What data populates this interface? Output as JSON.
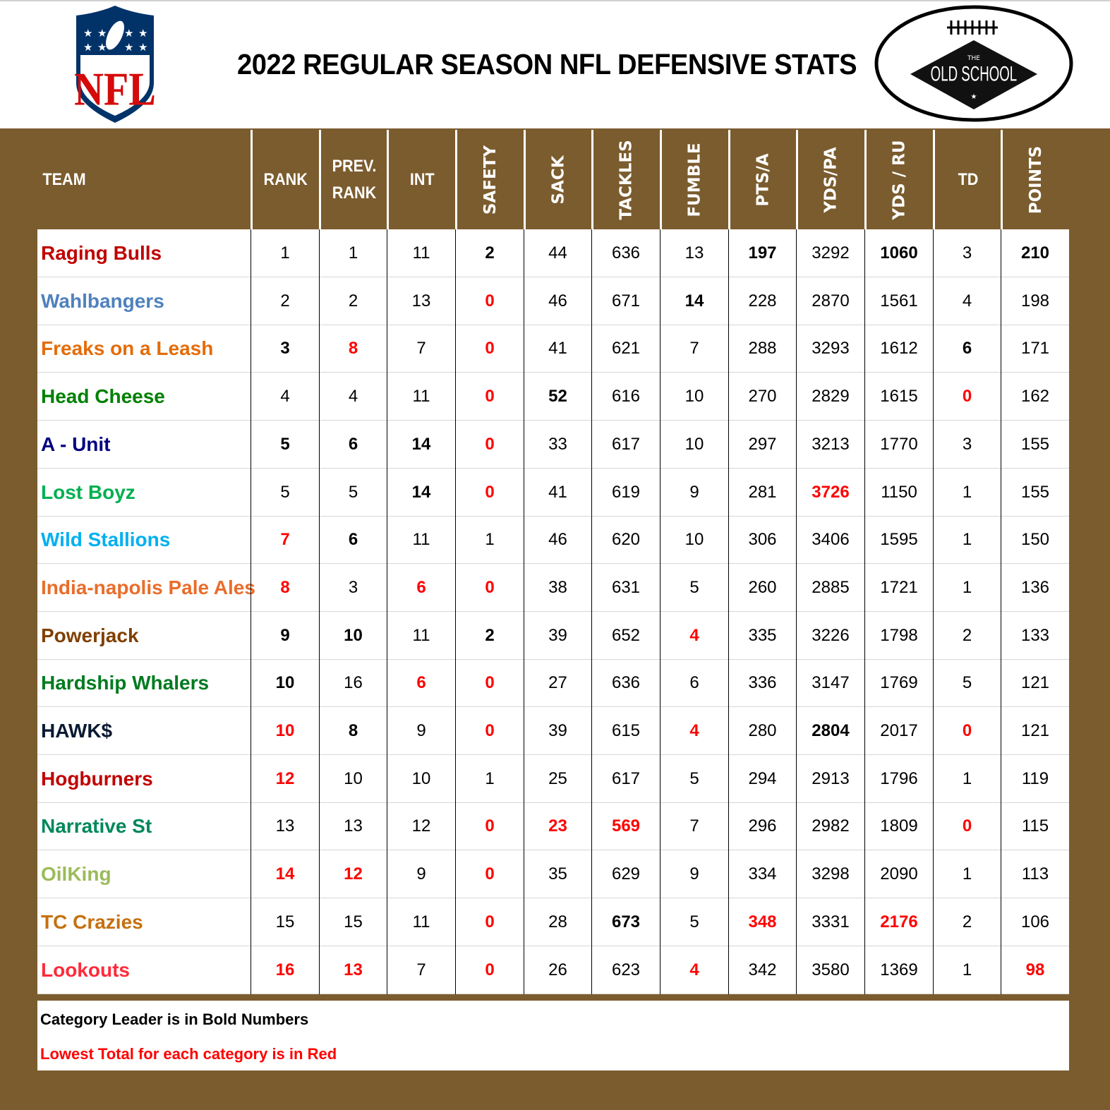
{
  "header": {
    "title": "2022 REGULAR SEASON NFL DEFENSIVE STATS",
    "left_logo": "nfl-shield-logo",
    "left_logo_text": "NFL",
    "right_logo": "old-school-football-logo",
    "right_logo_text_top": "THE",
    "right_logo_text_main": "OLD SCHOOL"
  },
  "columns": [
    {
      "key": "team",
      "label": "TEAM"
    },
    {
      "key": "rank",
      "label": "RANK"
    },
    {
      "key": "prev_rank",
      "label": "PREV. RANK"
    },
    {
      "key": "int",
      "label": "INT"
    },
    {
      "key": "safety",
      "label": "SAFETY"
    },
    {
      "key": "sack",
      "label": "SACK"
    },
    {
      "key": "tackles",
      "label": "TACKLES"
    },
    {
      "key": "fumble",
      "label": "FUMBLE"
    },
    {
      "key": "pts_a",
      "label": "PTS/A"
    },
    {
      "key": "yds_pa",
      "label": "YDS/PA"
    },
    {
      "key": "yds_ru",
      "label": "YDS / RU"
    },
    {
      "key": "td",
      "label": "TD"
    },
    {
      "key": "points",
      "label": "POINTS"
    }
  ],
  "colors": {
    "frame_brown": "#7b5c2e",
    "red_lowest": "#ff0000",
    "header_text": "#ffffff"
  },
  "rows": [
    {
      "team": "Raging Bulls",
      "team_color": "#c00000",
      "values": [
        "1",
        "1",
        "11",
        "2",
        "44",
        "636",
        "13",
        "197",
        "3292",
        "1060",
        "3",
        "210"
      ],
      "styles": [
        "",
        "",
        "",
        "b",
        "",
        "",
        "",
        "b",
        "",
        "b",
        "",
        "b"
      ]
    },
    {
      "team": "Wahlbangers",
      "team_color": "#4f81bd",
      "values": [
        "2",
        "2",
        "13",
        "0",
        "46",
        "671",
        "14",
        "228",
        "2870",
        "1561",
        "4",
        "198"
      ],
      "styles": [
        "",
        "",
        "",
        "r",
        "",
        "",
        "b",
        "",
        "",
        "",
        "",
        ""
      ]
    },
    {
      "team": "Freaks on a Leash",
      "team_color": "#e46c0a",
      "values": [
        "3",
        "8",
        "7",
        "0",
        "41",
        "621",
        "7",
        "288",
        "3293",
        "1612",
        "6",
        "171"
      ],
      "styles": [
        "b",
        "r",
        "",
        "r",
        "",
        "",
        "",
        "",
        "",
        "",
        "b",
        ""
      ]
    },
    {
      "team": "Head Cheese",
      "team_color": "#008000",
      "values": [
        "4",
        "4",
        "11",
        "0",
        "52",
        "616",
        "10",
        "270",
        "2829",
        "1615",
        "0",
        "162"
      ],
      "styles": [
        "",
        "",
        "",
        "r",
        "b",
        "",
        "",
        "",
        "",
        "",
        "r",
        ""
      ]
    },
    {
      "team": "A - Unit",
      "team_color": "#000080",
      "values": [
        "5",
        "6",
        "14",
        "0",
        "33",
        "617",
        "10",
        "297",
        "3213",
        "1770",
        "3",
        "155"
      ],
      "styles": [
        "b",
        "b",
        "b",
        "r",
        "",
        "",
        "",
        "",
        "",
        "",
        "",
        ""
      ]
    },
    {
      "team": "Lost Boyz",
      "team_color": "#00b050",
      "values": [
        "5",
        "5",
        "14",
        "0",
        "41",
        "619",
        "9",
        "281",
        "3726",
        "1150",
        "1",
        "155"
      ],
      "styles": [
        "",
        "",
        "b",
        "r",
        "",
        "",
        "",
        "",
        "r",
        "",
        "",
        ""
      ]
    },
    {
      "team": "Wild Stallions",
      "team_color": "#00b0f0",
      "values": [
        "7",
        "6",
        "11",
        "1",
        "46",
        "620",
        "10",
        "306",
        "3406",
        "1595",
        "1",
        "150"
      ],
      "styles": [
        "r",
        "b",
        "",
        "",
        "",
        "",
        "",
        "",
        "",
        "",
        "",
        ""
      ]
    },
    {
      "team": "India-napolis Pale Ales",
      "team_color": "#e96d2b",
      "values": [
        "8",
        "3",
        "6",
        "0",
        "38",
        "631",
        "5",
        "260",
        "2885",
        "1721",
        "1",
        "136"
      ],
      "styles": [
        "r",
        "",
        "r",
        "r",
        "",
        "",
        "",
        "",
        "",
        "",
        "",
        ""
      ]
    },
    {
      "team": "Powerjack",
      "team_color": "#7f3f00",
      "values": [
        "9",
        "10",
        "11",
        "2",
        "39",
        "652",
        "4",
        "335",
        "3226",
        "1798",
        "2",
        "133"
      ],
      "styles": [
        "b",
        "b",
        "",
        "b",
        "",
        "",
        "r",
        "",
        "",
        "",
        "",
        ""
      ]
    },
    {
      "team": "Hardship Whalers",
      "team_color": "#007a1f",
      "values": [
        "10",
        "16",
        "6",
        "0",
        "27",
        "636",
        "6",
        "336",
        "3147",
        "1769",
        "5",
        "121"
      ],
      "styles": [
        "b",
        "",
        "r",
        "r",
        "",
        "",
        "",
        "",
        "",
        "",
        "",
        ""
      ]
    },
    {
      "team": "HAWK$",
      "team_color": "#0b1a33",
      "values": [
        "10",
        "8",
        "9",
        "0",
        "39",
        "615",
        "4",
        "280",
        "2804",
        "2017",
        "0",
        "121"
      ],
      "styles": [
        "r",
        "b",
        "",
        "r",
        "",
        "",
        "r",
        "",
        "b",
        "",
        "r",
        ""
      ]
    },
    {
      "team": "Hogburners",
      "team_color": "#c00000",
      "values": [
        "12",
        "10",
        "10",
        "1",
        "25",
        "617",
        "5",
        "294",
        "2913",
        "1796",
        "1",
        "119"
      ],
      "styles": [
        "r",
        "",
        "",
        "",
        "",
        "",
        "",
        "",
        "",
        "",
        "",
        ""
      ]
    },
    {
      "team": "Narrative St",
      "team_color": "#00875a",
      "values": [
        "13",
        "13",
        "12",
        "0",
        "23",
        "569",
        "7",
        "296",
        "2982",
        "1809",
        "0",
        "115"
      ],
      "styles": [
        "",
        "",
        "",
        "r",
        "r",
        "r",
        "",
        "",
        "",
        "",
        "r",
        ""
      ]
    },
    {
      "team": "OilKing",
      "team_color": "#9bbb59",
      "values": [
        "14",
        "12",
        "9",
        "0",
        "35",
        "629",
        "9",
        "334",
        "3298",
        "2090",
        "1",
        "113"
      ],
      "styles": [
        "r",
        "r",
        "",
        "r",
        "",
        "",
        "",
        "",
        "",
        "",
        "",
        ""
      ]
    },
    {
      "team": "TC Crazies",
      "team_color": "#c5700f",
      "values": [
        "15",
        "15",
        "11",
        "0",
        "28",
        "673",
        "5",
        "348",
        "3331",
        "2176",
        "2",
        "106"
      ],
      "styles": [
        "",
        "",
        "",
        "r",
        "",
        "b",
        "",
        "r",
        "",
        "r",
        "",
        ""
      ]
    },
    {
      "team": "Lookouts",
      "team_color": "#ff2a3a",
      "values": [
        "16",
        "13",
        "7",
        "0",
        "26",
        "623",
        "4",
        "342",
        "3580",
        "1369",
        "1",
        "98"
      ],
      "styles": [
        "r",
        "r",
        "",
        "r",
        "",
        "",
        "r",
        "",
        "",
        "",
        "",
        "r"
      ]
    }
  ],
  "legend": {
    "bold_note": "Category Leader is in Bold Numbers",
    "red_note": "Lowest Total for each category is in Red"
  }
}
